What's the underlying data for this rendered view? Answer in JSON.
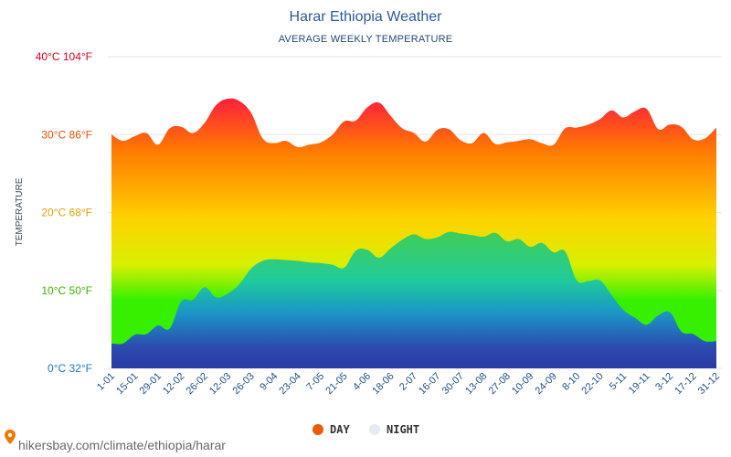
{
  "colors": {
    "day_legend": "#f05a00",
    "night_legend": "#e6eaf2",
    "day_gradient": [
      "#ff1a40",
      "#ff7a00",
      "#ffd200",
      "#d8f000",
      "#36f000"
    ],
    "night_gradient": [
      "#2ecc60",
      "#16c8a8",
      "#1a8cd8",
      "#2a3cbc",
      "#2a2ab4"
    ],
    "y_tick_colors": [
      "#1a78c2",
      "#3cb500",
      "#e6a300",
      "#f05000",
      "#e8001c"
    ]
  },
  "footer": {
    "source": "hikersbay.com/climate/ethiopia/harar",
    "pin_icon": "map-pin-icon"
  },
  "chart_data": {
    "type": "area",
    "title": "Harar Ethiopia Weather",
    "subtitle": "AVERAGE WEEKLY TEMPERATURE",
    "ylabel": "TEMPERATURE",
    "ylim": [
      0,
      40
    ],
    "y_ticks": [
      {
        "value": 0,
        "label": "0°C 32°F"
      },
      {
        "value": 10,
        "label": "10°C 50°F"
      },
      {
        "value": 20,
        "label": "20°C 68°F"
      },
      {
        "value": 30,
        "label": "30°C 86°F"
      },
      {
        "value": 40,
        "label": "40°C 104°F"
      }
    ],
    "x_labels": [
      "1-01",
      "15-01",
      "29-01",
      "12-02",
      "26-02",
      "12-03",
      "26-03",
      "9-04",
      "23-04",
      "7-05",
      "21-05",
      "4-06",
      "18-06",
      "2-07",
      "16-07",
      "30-07",
      "13-08",
      "27-08",
      "10-09",
      "24-09",
      "8-10",
      "22-10",
      "5-11",
      "19-11",
      "3-12",
      "17-12",
      "31-12"
    ],
    "grid": true,
    "legend_position": "bottom-center",
    "series": [
      {
        "name": "DAY",
        "values": [
          30.0,
          29.2,
          29.8,
          30.2,
          28.7,
          30.8,
          31.0,
          30.2,
          31.5,
          33.8,
          34.6,
          34.3,
          32.8,
          29.5,
          28.9,
          29.2,
          28.4,
          28.7,
          29.0,
          30.0,
          31.7,
          31.8,
          33.5,
          34.1,
          32.4,
          30.8,
          30.2,
          29.1,
          30.6,
          30.7,
          29.3,
          28.9,
          30.2,
          28.8,
          29.0,
          29.2,
          29.4,
          28.9,
          28.7,
          30.8,
          30.9,
          31.3,
          32.0,
          33.1,
          32.2,
          33.0,
          33.3,
          30.7,
          31.3,
          31.0,
          29.4,
          29.5,
          30.9
        ]
      },
      {
        "name": "NIGHT",
        "values": [
          3.2,
          3.2,
          4.3,
          4.4,
          5.5,
          5.1,
          8.6,
          8.8,
          10.4,
          9.1,
          9.6,
          10.8,
          12.8,
          13.8,
          14.0,
          13.9,
          13.8,
          13.6,
          13.5,
          13.3,
          12.9,
          15.1,
          15.2,
          14.2,
          15.4,
          16.5,
          17.2,
          16.6,
          16.8,
          17.5,
          17.3,
          17.1,
          16.9,
          17.4,
          16.3,
          16.6,
          15.6,
          16.1,
          14.9,
          15.0,
          11.3,
          11.2,
          11.3,
          9.4,
          7.5,
          6.5,
          5.6,
          6.8,
          7.2,
          4.7,
          4.4,
          3.5,
          3.5
        ]
      }
    ]
  }
}
